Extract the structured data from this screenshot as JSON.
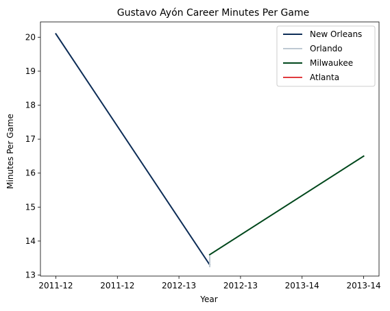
{
  "chart_data": {
    "type": "line",
    "title": "Gustavo Ayón Career Minutes Per Game",
    "xlabel": "Year",
    "ylabel": "Minutes Per Game",
    "x_tick_labels": [
      "2011-12",
      "2011-12",
      "2012-13",
      "2012-13",
      "2013-14",
      "2013-14"
    ],
    "y_ticks": [
      13,
      14,
      15,
      16,
      17,
      18,
      19,
      20
    ],
    "xlim": [
      -0.25,
      5.25
    ],
    "ylim": [
      12.97,
      20.45
    ],
    "grid": false,
    "legend_position": "top-right",
    "series": [
      {
        "name": "New Orleans",
        "color": "#0c2c56",
        "points": [
          [
            0,
            20.1
          ],
          [
            2.5,
            13.3
          ]
        ]
      },
      {
        "name": "Orlando",
        "color": "#bec9d2",
        "points": [
          [
            2.5,
            13.55
          ],
          [
            2.5,
            13.25
          ]
        ]
      },
      {
        "name": "Milwaukee",
        "color": "#00471b",
        "points": [
          [
            2.5,
            13.6
          ],
          [
            5,
            16.5
          ]
        ]
      },
      {
        "name": "Atlanta",
        "color": "#e03a3e",
        "points": []
      }
    ]
  }
}
